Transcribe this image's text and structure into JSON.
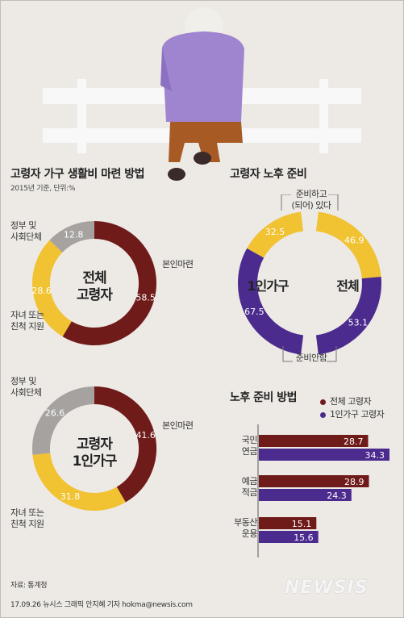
{
  "colors": {
    "maroon": "#6e1b19",
    "yellow": "#f1c232",
    "gray": "#a5a2a0",
    "purple": "#4b2b8e",
    "bg": "#edeae6",
    "line": "#777777"
  },
  "left": {
    "title": "고령자 가구 생활비 마련 방법",
    "note": "2015년 기준, 단위:%",
    "donut1": {
      "center_line1": "전체",
      "center_line2": "고령자",
      "label_gov_1": "정부 및",
      "label_gov_2": "사회단체",
      "label_self": "본인마련",
      "label_child_1": "자녀 또는",
      "label_child_2": "친척 지원",
      "values_text": {
        "self": "58.5",
        "child": "28.6",
        "gov": "12.8"
      }
    },
    "donut2": {
      "center_line1": "고령자",
      "center_line2": "1인가구",
      "label_gov_1": "정부 및",
      "label_gov_2": "사회단체",
      "label_self": "본인마련",
      "label_child_1": "자녀 또는",
      "label_child_2": "친척 지원",
      "values_text": {
        "self": "41.6",
        "child": "31.8",
        "gov": "26.6"
      }
    }
  },
  "right": {
    "title": "고령자 노후 준비",
    "prepared_label_1": "준비하고",
    "prepared_label_2": "(되어) 있다",
    "not_prepared_label": "준비안함",
    "one_person_label": "1인가구",
    "total_label": "전체",
    "values_text": {
      "one_prepared": "32.5",
      "one_not": "67.5",
      "total_prepared": "46.9",
      "total_not": "53.1"
    }
  },
  "methods": {
    "title": "노후 준비 방법",
    "legend_total": "전체 고령자",
    "legend_one": "1인가구 고령자",
    "cat1_line1": "국민",
    "cat1_line2": "연금",
    "cat2_line1": "예금",
    "cat2_line2": "적금",
    "cat3_line1": "부동산",
    "cat3_line2": "운용",
    "values_text": {
      "c1_total": "28.7",
      "c1_one": "34.3",
      "c2_total": "28.9",
      "c2_one": "24.3",
      "c3_total": "15.1",
      "c3_one": "15.6"
    }
  },
  "footer": {
    "source": "자료: 통계청",
    "credit": "17.09.26 뉴시스 그래픽 안지혜 기자 hokma@newsis.com"
  },
  "logo": "NEWSIS",
  "chart_data": [
    {
      "type": "pie",
      "title": "고령자 가구 생활비 마련 방법",
      "subtitle": "2015년 기준, 단위:%",
      "series_name": "전체 고령자",
      "categories": [
        "본인마련",
        "자녀 또는 친척 지원",
        "정부 및 사회단체"
      ],
      "values": [
        58.5,
        28.6,
        12.8
      ]
    },
    {
      "type": "pie",
      "title": "고령자 가구 생활비 마련 방법",
      "series_name": "고령자 1인가구",
      "categories": [
        "본인마련",
        "자녀 또는 친척 지원",
        "정부 및 사회단체"
      ],
      "values": [
        41.6,
        31.8,
        26.6
      ]
    },
    {
      "type": "pie",
      "title": "고령자 노후 준비",
      "categories": [
        "준비하고 (되어) 있다",
        "준비안함"
      ],
      "series": [
        {
          "name": "1인가구",
          "values": [
            32.5,
            67.5
          ]
        },
        {
          "name": "전체",
          "values": [
            46.9,
            53.1
          ]
        }
      ]
    },
    {
      "type": "bar",
      "orientation": "horizontal",
      "title": "노후 준비 방법",
      "categories": [
        "국민연금",
        "예금적금",
        "부동산운용"
      ],
      "series": [
        {
          "name": "전체 고령자",
          "values": [
            28.7,
            28.9,
            15.1
          ]
        },
        {
          "name": "1인가구 고령자",
          "values": [
            34.3,
            24.3,
            15.6
          ]
        }
      ],
      "legend": "top-right"
    }
  ]
}
